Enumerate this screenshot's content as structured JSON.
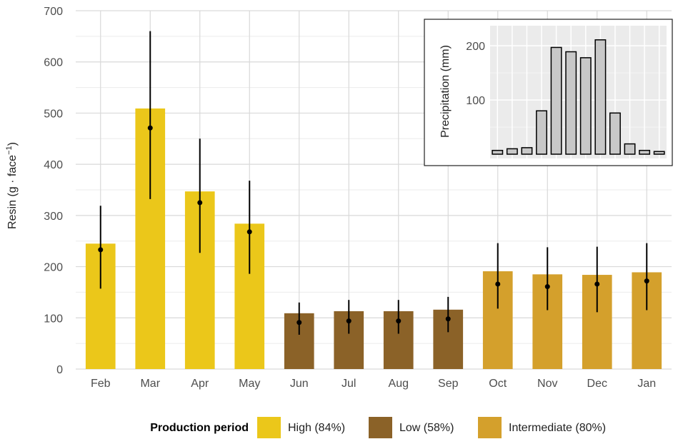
{
  "chart_data": [
    {
      "type": "bar",
      "ylabel": "Resin (g · face",
      "ylabel_sup": "−1",
      "ylabel_close": ")",
      "ylim": [
        0,
        700
      ],
      "yticks": [
        0,
        100,
        200,
        300,
        400,
        500,
        600,
        700
      ],
      "categories": [
        "Feb",
        "Mar",
        "Apr",
        "May",
        "Jun",
        "Jul",
        "Aug",
        "Sep",
        "Oct",
        "Nov",
        "Dec",
        "Jan"
      ],
      "values": [
        245,
        509,
        347,
        284,
        109,
        113,
        113,
        116,
        191,
        185,
        184,
        189
      ],
      "means": [
        233,
        471,
        325,
        268,
        91,
        94,
        94,
        98,
        166,
        161,
        166,
        172
      ],
      "err_low": [
        157,
        332,
        227,
        186,
        67,
        69,
        69,
        72,
        118,
        115,
        111,
        115
      ],
      "err_high": [
        319,
        660,
        450,
        368,
        130,
        135,
        135,
        141,
        246,
        238,
        239,
        246
      ],
      "period": [
        "High",
        "High",
        "High",
        "High",
        "Low",
        "Low",
        "Low",
        "Low",
        "Intermediate",
        "Intermediate",
        "Intermediate",
        "Intermediate"
      ],
      "grid": true,
      "legend": {
        "title": "Production period",
        "placement": "bottom",
        "items": [
          {
            "key": "High",
            "label": "High (84%)",
            "color": "#EBC71A"
          },
          {
            "key": "Low",
            "label": "Low (58%)",
            "color": "#8B6228"
          },
          {
            "key": "Intermediate",
            "label": "Intermediate (80%)",
            "color": "#D4A02C"
          }
        ]
      }
    },
    {
      "type": "bar",
      "placement": "inset top-right",
      "ylabel": "Precipitation (mm)",
      "yticks": [
        100,
        200
      ],
      "ylim": [
        0,
        245
      ],
      "values": [
        7,
        10,
        12,
        80,
        197,
        189,
        178,
        211,
        76,
        19,
        7,
        5
      ],
      "bar_color": "#C8C8C8",
      "panel_color": "#EBEBEB"
    }
  ]
}
